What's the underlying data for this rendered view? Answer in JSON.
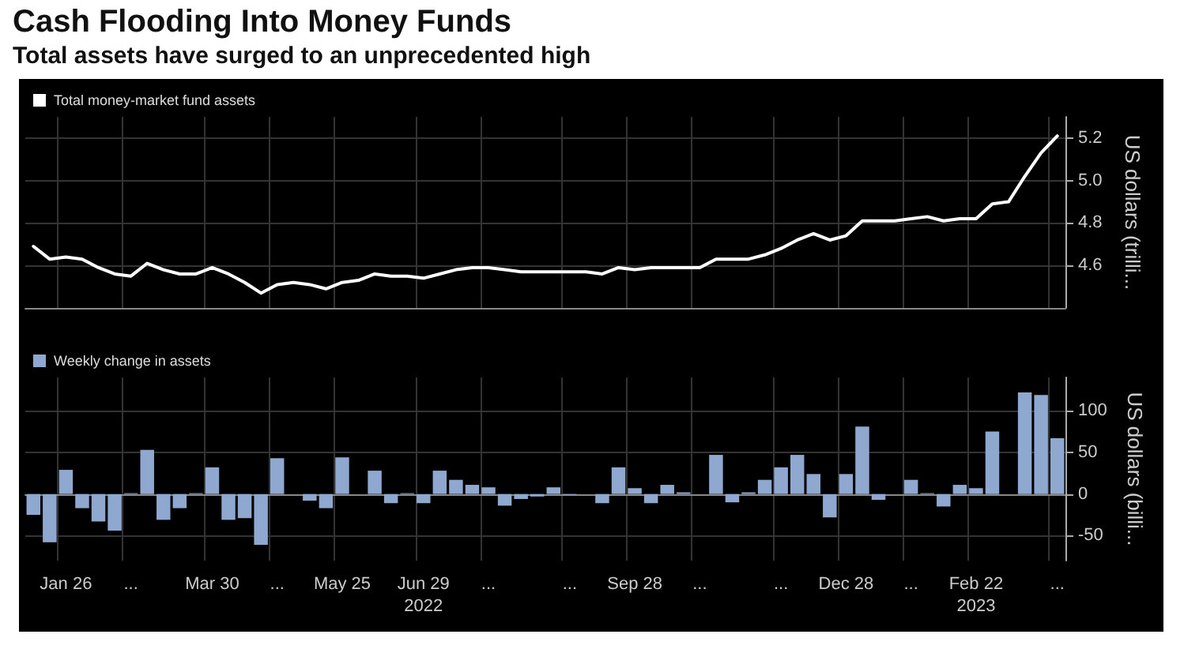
{
  "chart_data": [
    {
      "type": "line",
      "title": "Cash Flooding Into Money Funds",
      "subtitle": "Total assets have surged to an unprecedented high",
      "ylabel": "US dollars (trilli...",
      "categories": [
        null,
        null,
        null,
        null,
        null,
        null,
        null,
        null,
        null,
        null,
        null,
        null,
        null,
        null,
        null,
        null,
        null,
        null,
        null,
        null,
        null,
        null,
        null,
        null,
        null,
        null,
        null,
        null,
        null,
        null,
        null,
        null,
        null,
        null,
        null,
        null,
        null,
        null,
        null,
        null,
        null,
        null,
        null,
        null,
        null,
        null,
        null,
        null,
        null,
        null,
        null,
        null,
        null,
        null,
        null,
        null,
        null,
        null,
        null,
        null,
        null,
        null,
        null,
        null
      ],
      "series": [
        {
          "name": "Total money-market fund assets",
          "color": "#ffffff",
          "values": [
            4.69,
            4.63,
            4.64,
            4.63,
            4.59,
            4.56,
            4.55,
            4.61,
            4.58,
            4.56,
            4.56,
            4.59,
            4.56,
            4.52,
            4.47,
            4.51,
            4.52,
            4.51,
            4.49,
            4.52,
            4.53,
            4.56,
            4.55,
            4.55,
            4.54,
            4.56,
            4.58,
            4.59,
            4.59,
            4.58,
            4.57,
            4.57,
            4.57,
            4.57,
            4.57,
            4.56,
            4.59,
            4.58,
            4.59,
            4.59,
            4.59,
            4.59,
            4.63,
            4.63,
            4.63,
            4.65,
            4.68,
            4.72,
            4.75,
            4.72,
            4.74,
            4.81,
            4.81,
            4.81,
            4.82,
            4.83,
            4.81,
            4.82,
            4.82,
            4.89,
            4.9,
            5.02,
            5.13,
            5.21
          ]
        }
      ],
      "ylim": [
        4.4,
        5.3
      ],
      "yticks": [
        4.6,
        4.8,
        {
          "value": 5,
          "label": "5.0"
        },
        5.2
      ],
      "tick_labels": "y",
      "legend": "top left",
      "grid": true
    },
    {
      "type": "bar",
      "ylabel": "US dollars (billi...",
      "categories": [
        null,
        null,
        "Jan 26",
        null,
        null,
        null,
        "...",
        null,
        null,
        null,
        null,
        "Mar 30",
        null,
        null,
        null,
        "...",
        null,
        null,
        null,
        "May 25",
        null,
        null,
        null,
        null,
        "Jun 29\n2022",
        null,
        null,
        null,
        "...",
        null,
        null,
        null,
        null,
        "...",
        null,
        null,
        null,
        "Sep 28",
        null,
        null,
        null,
        "...",
        null,
        null,
        null,
        null,
        "...",
        null,
        null,
        null,
        "Dec 28",
        null,
        null,
        null,
        "...",
        null,
        null,
        null,
        "Feb 22\n2023",
        null,
        null,
        null,
        null,
        "..."
      ],
      "series": [
        {
          "name": "Weekly change in assets",
          "color": "#8fa8d0",
          "values": [
            -25,
            -58,
            29,
            -17,
            -33,
            -44,
            1,
            53,
            -31,
            -17,
            1,
            32,
            -31,
            -29,
            -61,
            43,
            0,
            -8,
            -17,
            44,
            0,
            28,
            -11,
            1,
            -11,
            28,
            17,
            11,
            8,
            -14,
            -6,
            -3,
            8,
            -1,
            0,
            -11,
            32,
            7,
            -11,
            11,
            2,
            0,
            47,
            -10,
            2,
            17,
            32,
            47,
            24,
            -28,
            24,
            81,
            -7,
            0,
            17,
            1,
            -15,
            11,
            7,
            75,
            0,
            122,
            119,
            67
          ]
        }
      ],
      "ylim": [
        -80,
        140
      ],
      "yticks": [
        -50,
        0,
        50,
        100
      ],
      "legend": "top left",
      "grid": true
    }
  ]
}
